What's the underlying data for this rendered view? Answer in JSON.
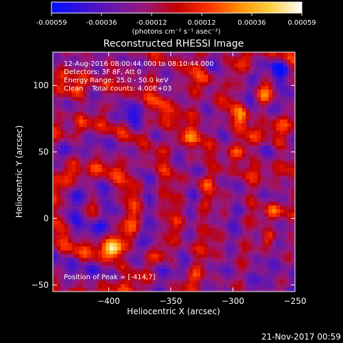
{
  "chart_data": {
    "type": "heatmap",
    "title": "Reconstructed RHESSI Image",
    "xlabel": "Heliocentric X (arcsec)",
    "ylabel": "Heliocentric Y (arcsec)",
    "xlim": [
      -445,
      -250
    ],
    "ylim": [
      -55,
      125
    ],
    "x_ticks": [
      -400,
      -350,
      -300,
      -250
    ],
    "y_ticks": [
      -50,
      0,
      50,
      100
    ],
    "colorbar": {
      "range": [
        -0.00059,
        0.00059
      ],
      "ticks": [
        "-0.00059",
        "-0.00036",
        "-0.00012",
        "0.00012",
        "0.00036",
        "0.00059"
      ],
      "units_label": "(photons cm⁻² s⁻¹ asec⁻²)",
      "colors": [
        "#0010ff",
        "#3a10d8",
        "#6a18a8",
        "#9a1878",
        "#c00000",
        "#ff3000",
        "#ff9000",
        "#ffd040",
        "#ffffff"
      ]
    },
    "annotations": [
      "12-Aug-2016 08:00:44.000 to 08:10:44.000",
      "Detectors: 3F 8F, Att 0",
      "Energy Range: 25.0 - 50.0 keV",
      "Clean    Total counts: 4.00E+03"
    ],
    "peak_label": "Position of Peak = [-414,7]",
    "peak_position": [
      -414,
      7
    ],
    "footer_date": "21-Nov-2017 00:59",
    "grid": false
  }
}
